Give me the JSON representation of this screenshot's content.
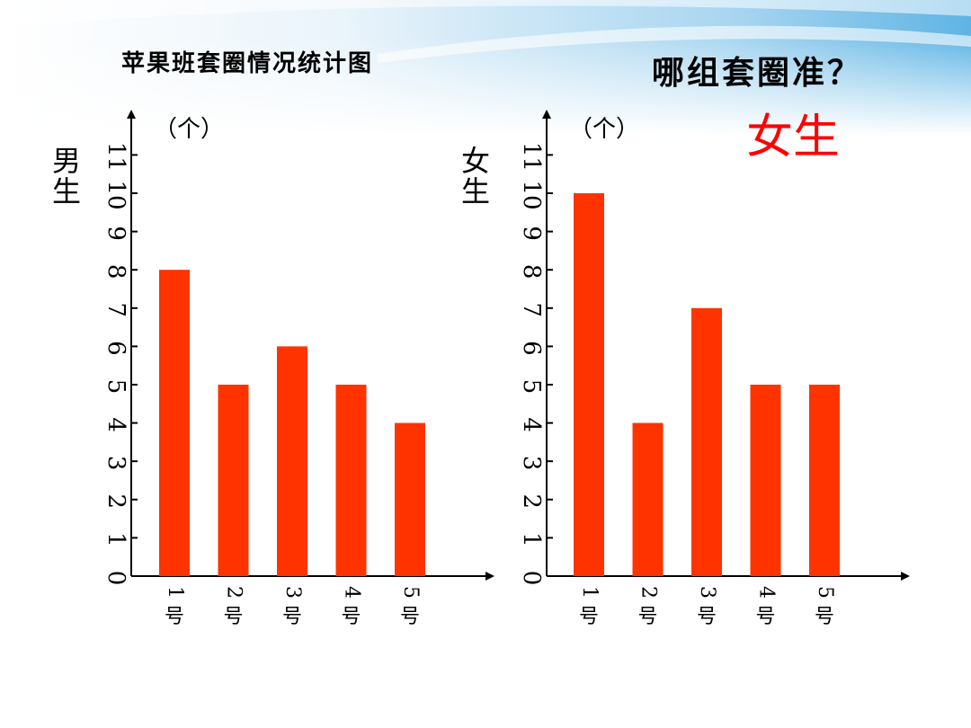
{
  "title": "苹果班套圈情况统计图",
  "question": "哪组套圈准？",
  "highlight": "女生",
  "colors": {
    "bar": "#ff3300",
    "axis": "#000000",
    "highlight": "#ff0000"
  },
  "chart_data": [
    {
      "type": "bar",
      "group_label": "男生",
      "unit_label": "（个）",
      "categories": [
        "1号",
        "2号",
        "3号",
        "4号",
        "5号"
      ],
      "values": [
        8,
        5,
        6,
        5,
        4
      ],
      "ylim": [
        0,
        11
      ],
      "y_ticks": [
        0,
        1,
        2,
        3,
        4,
        5,
        6,
        7,
        8,
        9,
        10,
        11
      ],
      "y_tick_labels": [
        "0",
        "1",
        "2",
        "3",
        "4",
        "5",
        "6",
        "7",
        "8",
        "9",
        "10",
        "11"
      ],
      "grid": false
    },
    {
      "type": "bar",
      "group_label": "女生",
      "unit_label": "（个）",
      "categories": [
        "1号",
        "2号",
        "3号",
        "4号",
        "5号"
      ],
      "values": [
        10,
        4,
        7,
        5,
        5
      ],
      "ylim": [
        0,
        11
      ],
      "y_ticks": [
        0,
        1,
        2,
        3,
        4,
        5,
        6,
        7,
        8,
        9,
        10,
        11
      ],
      "y_tick_labels": [
        "0",
        "1",
        "2",
        "3",
        "4",
        "5",
        "6",
        "7",
        "8",
        "9",
        "10",
        "11"
      ],
      "grid": false
    }
  ]
}
